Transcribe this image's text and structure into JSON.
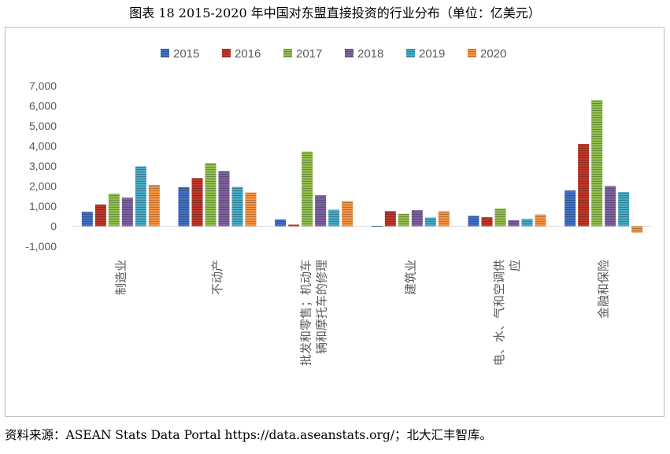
{
  "figure_title": "图表 18 2015-2020 年中国对东盟直接投资的行业分布（单位：亿美元）",
  "source": "资料来源：ASEAN Stats Data Portal https://data.aseanstats.org/；北大汇丰智库。",
  "chart_data": {
    "type": "bar",
    "title": "",
    "xlabel": "",
    "ylabel": "",
    "ylim": [
      -1000,
      7000
    ],
    "yticks": [
      -1000,
      0,
      1000,
      2000,
      3000,
      4000,
      5000,
      6000,
      7000
    ],
    "ytick_labels": [
      "-1,000",
      "0",
      "1,000",
      "2,000",
      "3,000",
      "4,000",
      "5,000",
      "6,000",
      "7,000"
    ],
    "grid": false,
    "legend_position": "top",
    "categories": [
      [
        "制造业"
      ],
      [
        "不动产"
      ],
      [
        "批发和零售；机动车",
        "辆和摩托车的修理"
      ],
      [
        "建筑业"
      ],
      [
        "电、水、气和空调供",
        "应"
      ],
      [
        "金融和保险"
      ]
    ],
    "series": [
      {
        "name": "2015",
        "color": "#4472C4",
        "values": [
          720,
          1950,
          340,
          20,
          520,
          1780
        ]
      },
      {
        "name": "2016",
        "color": "#C0392B",
        "values": [
          1080,
          2400,
          80,
          750,
          450,
          4100
        ]
      },
      {
        "name": "2017",
        "color": "#92C050",
        "values": [
          1620,
          3150,
          3720,
          620,
          880,
          6280
        ]
      },
      {
        "name": "2018",
        "color": "#8064A2",
        "values": [
          1420,
          2750,
          1540,
          800,
          300,
          2000
        ]
      },
      {
        "name": "2019",
        "color": "#4BACC6",
        "values": [
          2980,
          1960,
          820,
          430,
          360,
          1700
        ]
      },
      {
        "name": "2020",
        "color": "#F79646",
        "values": [
          2060,
          1680,
          1250,
          740,
          580,
          -320
        ]
      }
    ]
  }
}
